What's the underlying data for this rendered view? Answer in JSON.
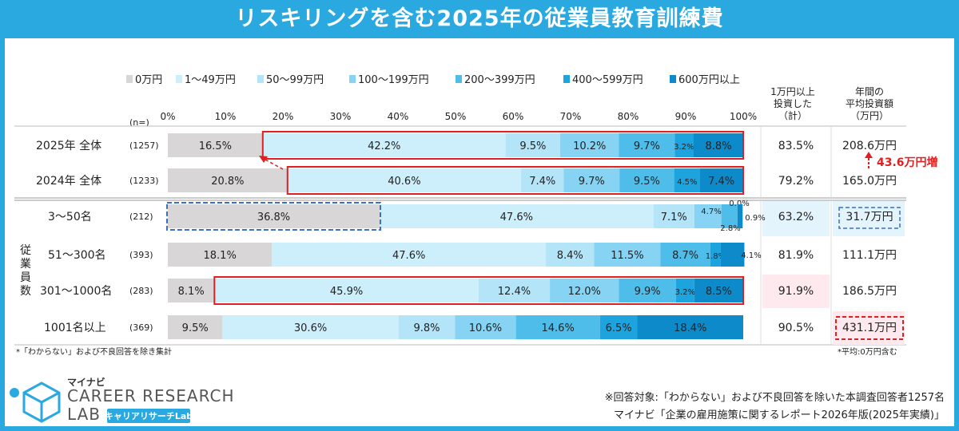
{
  "title": "リスキリングを含む2025年の従業員教育訓練費",
  "colors": {
    "accent": "#2aa9e0",
    "segments": [
      "#d9d6d8",
      "#cdeefb",
      "#b3e4f8",
      "#86d3f3",
      "#4fbde9",
      "#1da3dd",
      "#0d8ac9"
    ],
    "highlight": "#e02020",
    "dashed": "#3a6fc2"
  },
  "header": {
    "n_label": "(n=)",
    "col1": [
      "1万円以上",
      "投資した",
      "（計）"
    ],
    "col2": [
      "年間の",
      "平均投資額",
      "（万円）"
    ]
  },
  "chart_data": {
    "type": "bar",
    "orientation": "horizontal-stacked-100",
    "title": "リスキリングを含む2025年の従業員教育訓練費",
    "series_names": [
      "0万円",
      "1～49万円",
      "50～99万円",
      "100～199万円",
      "200～399万円",
      "400～599万円",
      "600万円以上"
    ],
    "x_ticks": [
      "0%",
      "10%",
      "20%",
      "30%",
      "40%",
      "50%",
      "60%",
      "70%",
      "80%",
      "90%",
      "100%"
    ],
    "xlim": [
      0,
      100
    ],
    "group_label": [
      "従",
      "業",
      "員",
      "数"
    ],
    "rows": [
      {
        "label": "2025年 全体",
        "n": "(1257)",
        "values": [
          16.5,
          42.2,
          9.5,
          10.2,
          9.7,
          3.2,
          8.8
        ],
        "labels": [
          "16.5%",
          "42.2%",
          "9.5%",
          "10.2%",
          "9.7%",
          "3.2%",
          "8.8%"
        ],
        "invested": "83.5%",
        "avg": "208.6万円"
      },
      {
        "label": "2024年 全体",
        "n": "(1233)",
        "values": [
          20.8,
          40.6,
          7.4,
          9.7,
          9.5,
          4.5,
          7.4
        ],
        "labels": [
          "20.8%",
          "40.6%",
          "7.4%",
          "9.7%",
          "9.5%",
          "4.5%",
          "7.4%"
        ],
        "invested": "79.2%",
        "avg": "165.0万円"
      },
      {
        "label": "3～50名",
        "n": "(212)",
        "values": [
          36.8,
          47.6,
          7.1,
          4.7,
          2.8,
          0.0,
          0.9
        ],
        "labels": [
          "36.8%",
          "47.6%",
          "7.1%",
          "4.7%",
          "2.8%",
          "0.0%",
          "0.9%"
        ],
        "invested": "63.2%",
        "avg": "31.7万円"
      },
      {
        "label": "51～300名",
        "n": "(393)",
        "values": [
          18.1,
          47.6,
          8.4,
          11.5,
          8.7,
          1.8,
          4.1
        ],
        "labels": [
          "18.1%",
          "47.6%",
          "8.4%",
          "11.5%",
          "8.7%",
          "1.8%",
          "4.1%"
        ],
        "invested": "81.9%",
        "avg": "111.1万円"
      },
      {
        "label": "301～1000名",
        "n": "(283)",
        "values": [
          8.1,
          45.9,
          12.4,
          12.0,
          9.9,
          3.2,
          8.5
        ],
        "labels": [
          "8.1%",
          "45.9%",
          "12.4%",
          "12.0%",
          "9.9%",
          "3.2%",
          "8.5%"
        ],
        "invested": "91.9%",
        "avg": "186.5万円"
      },
      {
        "label": "1001名以上",
        "n": "(369)",
        "values": [
          9.5,
          30.6,
          9.8,
          10.6,
          14.6,
          6.5,
          18.4
        ],
        "labels": [
          "9.5%",
          "30.6%",
          "9.8%",
          "10.6%",
          "14.6%",
          "6.5%",
          "18.4%"
        ],
        "invested": "90.5%",
        "avg": "431.1万円"
      }
    ],
    "annotation_increase": "43.6万円増"
  },
  "notes": {
    "left": "*「わからない」および不良回答を除き集計",
    "right": "*平均:0万円含む"
  },
  "source": {
    "line1": "※回答対象:「わからない」および不良回答を除いた本調査回答者1257名",
    "line2": "マイナビ「企業の雇用施策に関するレポート2026年版(2025年実績)」"
  },
  "logo": {
    "brand": "マイナビ",
    "line1": "CAREER RESEARCH",
    "line2": "LAB",
    "kana": "キャリアリサーチLab"
  }
}
